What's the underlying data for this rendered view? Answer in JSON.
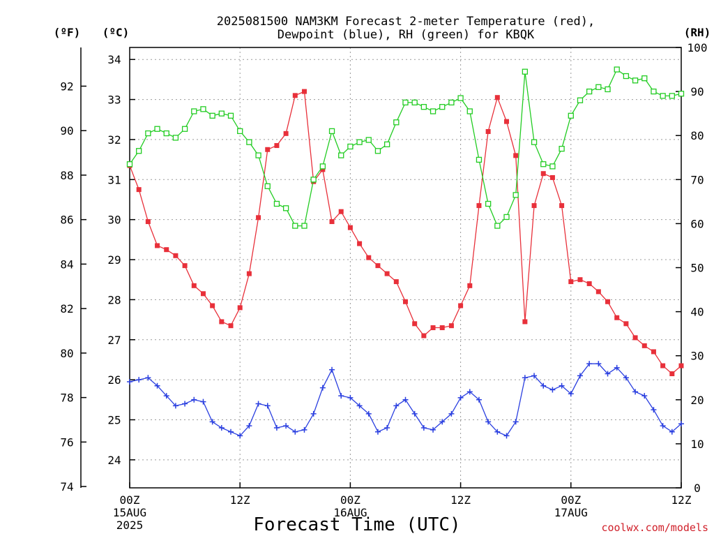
{
  "chart_data": {
    "type": "line",
    "title": [
      "2025081500 NAM3KM Forecast 2-meter Temperature (red),",
      "Dewpoint (blue), RH (green) for KBQK"
    ],
    "xlabel": "Forecast Time (UTC)",
    "credit": "coolwx.com/models",
    "units": {
      "left_f": "(ºF)",
      "left_c": "(ºC)",
      "right_rh": "(RH)"
    },
    "x_ticks": [
      {
        "hour": 0,
        "lines": [
          "00Z",
          "15AUG",
          "2025"
        ]
      },
      {
        "hour": 12,
        "lines": [
          "12Z"
        ]
      },
      {
        "hour": 24,
        "lines": [
          "00Z",
          "16AUG"
        ]
      },
      {
        "hour": 36,
        "lines": [
          "12Z"
        ]
      },
      {
        "hour": 48,
        "lines": [
          "00Z",
          "17AUG"
        ]
      },
      {
        "hour": 60,
        "lines": [
          "12Z"
        ]
      }
    ],
    "x_range": [
      0,
      60
    ],
    "c_range": [
      23.3,
      34.3
    ],
    "rh_range": [
      0,
      100
    ],
    "f_ticks": [
      "74",
      "76",
      "78",
      "80",
      "82",
      "84",
      "86",
      "88",
      "90",
      "92"
    ],
    "c_ticks": [
      "24",
      "25",
      "26",
      "27",
      "28",
      "29",
      "30",
      "31",
      "32",
      "33",
      "34"
    ],
    "rh_ticks": [
      "0",
      "10",
      "20",
      "30",
      "40",
      "50",
      "60",
      "70",
      "80",
      "90",
      "100"
    ],
    "grid": true,
    "series": [
      {
        "name": "2-meter Temperature",
        "color": "#e8303a",
        "marker": "filled-square",
        "x": [
          0,
          1,
          2,
          3,
          4,
          5,
          6,
          7,
          8,
          9,
          10,
          11,
          12,
          13,
          14,
          15,
          16,
          17,
          18,
          19,
          20,
          21,
          22,
          23,
          24,
          25,
          26,
          27,
          28,
          29,
          30,
          31,
          32,
          33,
          34,
          35,
          36,
          37,
          38,
          39,
          40,
          41,
          42,
          43,
          44,
          45,
          46,
          47,
          48,
          49,
          50,
          51,
          52,
          53,
          54,
          55,
          56,
          57,
          58,
          59,
          60
        ],
        "values": [
          31.35,
          30.75,
          29.95,
          29.35,
          29.25,
          29.1,
          28.85,
          28.35,
          28.15,
          27.85,
          27.45,
          27.35,
          27.8,
          28.65,
          30.05,
          31.75,
          31.85,
          32.15,
          33.1,
          33.2,
          30.95,
          31.25,
          29.95,
          30.2,
          29.8,
          29.4,
          29.05,
          28.85,
          28.65,
          28.45,
          27.95,
          27.4,
          27.1,
          27.3,
          27.3,
          27.35,
          27.85,
          28.35,
          30.35,
          32.2,
          33.05,
          32.45,
          31.6,
          27.45,
          30.35,
          31.15,
          31.05,
          30.35,
          28.45,
          28.5,
          28.4,
          28.2,
          27.95,
          27.55,
          27.4,
          27.05,
          26.85,
          26.7,
          26.35,
          26.15,
          26.35
        ]
      },
      {
        "name": "Dewpoint",
        "color": "#2a3fe0",
        "marker": "plus",
        "x": [
          0,
          1,
          2,
          3,
          4,
          5,
          6,
          7,
          8,
          9,
          10,
          11,
          12,
          13,
          14,
          15,
          16,
          17,
          18,
          19,
          20,
          21,
          22,
          23,
          24,
          25,
          26,
          27,
          28,
          29,
          30,
          31,
          32,
          33,
          34,
          35,
          36,
          37,
          38,
          39,
          40,
          41,
          42,
          43,
          44,
          45,
          46,
          47,
          48,
          49,
          50,
          51,
          52,
          53,
          54,
          55,
          56,
          57,
          58,
          59,
          60
        ],
        "values": [
          25.95,
          26.0,
          26.05,
          25.85,
          25.6,
          25.35,
          25.4,
          25.5,
          25.45,
          24.95,
          24.8,
          24.7,
          24.6,
          24.85,
          25.4,
          25.35,
          24.8,
          24.85,
          24.7,
          24.75,
          25.15,
          25.8,
          26.25,
          25.6,
          25.55,
          25.35,
          25.15,
          24.7,
          24.8,
          25.35,
          25.5,
          25.15,
          24.8,
          24.75,
          24.95,
          25.15,
          25.55,
          25.7,
          25.5,
          24.95,
          24.7,
          24.6,
          24.95,
          26.05,
          26.1,
          25.85,
          25.75,
          25.85,
          25.65,
          26.1,
          26.4,
          26.4,
          26.15,
          26.3,
          26.05,
          25.7,
          25.6,
          25.25,
          24.85,
          24.7,
          24.9
        ]
      },
      {
        "name": "RH",
        "color": "#22cc22",
        "marker": "open-square",
        "axis": "right",
        "x": [
          0,
          1,
          2,
          3,
          4,
          5,
          6,
          7,
          8,
          9,
          10,
          11,
          12,
          13,
          14,
          15,
          16,
          17,
          18,
          19,
          20,
          21,
          22,
          23,
          24,
          25,
          26,
          27,
          28,
          29,
          30,
          31,
          32,
          33,
          34,
          35,
          36,
          37,
          38,
          39,
          40,
          41,
          42,
          43,
          44,
          45,
          46,
          47,
          48,
          49,
          50,
          51,
          52,
          53,
          54,
          55,
          56,
          57,
          58,
          59,
          60
        ],
        "values": [
          73.5,
          76.5,
          80.5,
          81.5,
          80.5,
          79.5,
          81.5,
          85.5,
          86,
          84.5,
          85,
          84.5,
          81,
          78.5,
          75.5,
          68.5,
          64.5,
          63.5,
          59.5,
          59.5,
          70,
          73,
          81,
          75.5,
          77.5,
          78.5,
          79,
          76.5,
          78,
          83,
          87.5,
          87.5,
          86.5,
          85.5,
          86.5,
          87.5,
          88.5,
          85.5,
          74.5,
          64.5,
          59.5,
          61.5,
          66.5,
          94.5,
          78.5,
          73.5,
          73,
          77,
          84.5,
          88,
          90,
          91,
          90.5,
          95,
          93.5,
          92.5,
          93,
          90,
          89,
          89,
          89.5
        ]
      }
    ]
  }
}
